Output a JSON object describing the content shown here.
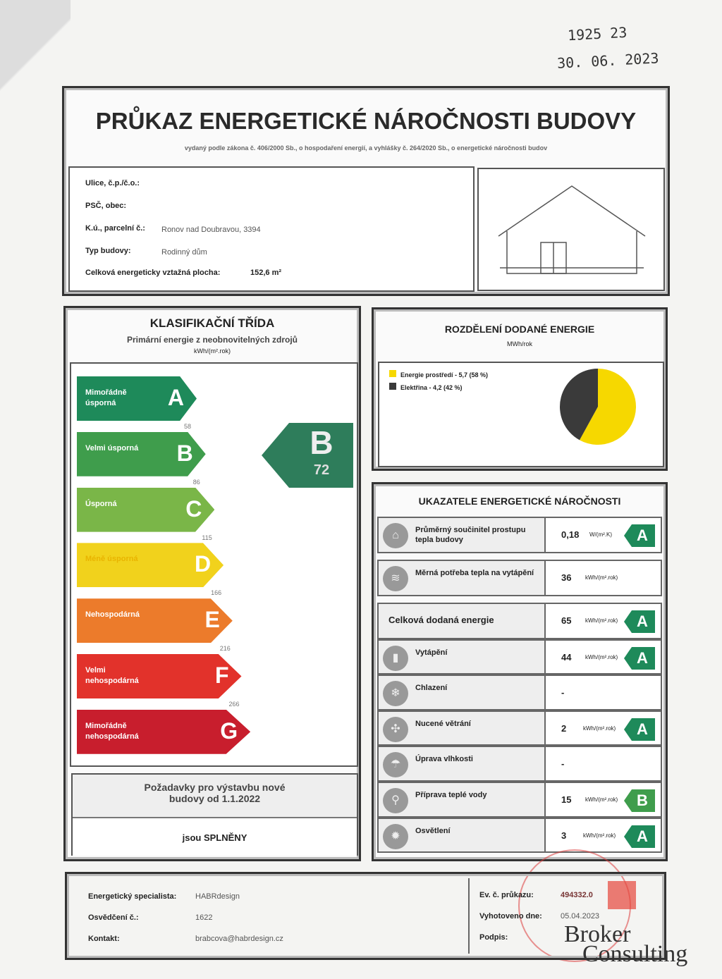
{
  "stamp": {
    "number": "1925 23",
    "date": "30. 06. 2023"
  },
  "header": {
    "title": "PRŮKAZ ENERGETICKÉ NÁROČNOSTI BUDOVY",
    "subtitle": "vydaný podle zákona č. 406/2000 Sb., o hospodaření energií, a vyhlášky č. 264/2020 Sb., o energetické náročnosti budov"
  },
  "building": {
    "street_label": "Ulice, č.p./č.o.:",
    "psc_label": "PSČ, obec:",
    "ku_label": "K.ú., parcelní č.:",
    "ku_value": "Ronov nad Doubravou, 3394",
    "type_label": "Typ budovy:",
    "type_value": "Rodinný dům",
    "area_label": "Celková energeticky vztažná plocha:",
    "area_value": "152,6 m²"
  },
  "classification": {
    "title": "KLASIFIKAČNÍ TŘÍDA",
    "subtitle": "Primární energie z neobnovitelných zdrojů",
    "unit": "kWh/(m².rok)",
    "classes": [
      {
        "letter": "A",
        "name": "Mimořádně úsporná",
        "color": "#1e8a5a"
      },
      {
        "letter": "B",
        "name": "Velmi úsporná",
        "color": "#3f9d4c"
      },
      {
        "letter": "C",
        "name": "Úsporná",
        "color": "#7ab648"
      },
      {
        "letter": "D",
        "name": "Méně úsporná",
        "color": "#f1d21c"
      },
      {
        "letter": "E",
        "name": "Nehospodárná",
        "color": "#ec7b2b"
      },
      {
        "letter": "F",
        "name": "Velmi nehospodárná",
        "color": "#e2322b"
      },
      {
        "letter": "G",
        "name": "Mimořádně nehospodárná",
        "color": "#c81e2d"
      }
    ],
    "thresholds": [
      "58",
      "86",
      "115",
      "166",
      "216",
      "266"
    ],
    "result": {
      "letter": "B",
      "value": "72",
      "color": "#2e7d5b"
    },
    "requirements": {
      "text": "Požadavky pro výstavbu nové budovy od 1.1.2022",
      "status": "jsou SPLNĚNY"
    }
  },
  "distribution": {
    "title": "ROZDĚLENÍ DODANÉ ENERGIE",
    "unit": "MWh/rok",
    "items": [
      {
        "label": "Energie prostředí - 5,7 (58 %)",
        "value": 5.7,
        "percent": 58,
        "color": "#f6d800"
      },
      {
        "label": "Elektřina - 4,2 (42 %)",
        "value": 4.2,
        "percent": 42,
        "color": "#3a3a3a"
      }
    ]
  },
  "indicators": {
    "title": "UKAZATELE ENERGETICKÉ NÁROČNOSTI",
    "rows": [
      {
        "icon": "house-icon",
        "label": "Průměrný součinitel prostupu tepla budovy",
        "value": "0,18",
        "unit": "W/(m².K)",
        "class": "A"
      },
      {
        "icon": "radiator-icon",
        "label": "Měrná potřeba tepla na vytápění",
        "value": "36",
        "unit": "kWh/(m².rok)",
        "class": ""
      },
      {
        "icon": "",
        "label": "Celková dodaná energie",
        "value": "65",
        "unit": "kWh/(m².rok)",
        "class": "A"
      },
      {
        "icon": "heating-icon",
        "label": "Vytápění",
        "value": "44",
        "unit": "kWh/(m².rok)",
        "class": "A"
      },
      {
        "icon": "cooling-icon",
        "label": "Chlazení",
        "value": "-",
        "unit": "",
        "class": ""
      },
      {
        "icon": "fan-icon",
        "label": "Nucené větrání",
        "value": "2",
        "unit": "kWh/(m².rok)",
        "class": "A"
      },
      {
        "icon": "humidity-icon",
        "label": "Úprava vlhkosti",
        "value": "-",
        "unit": "",
        "class": ""
      },
      {
        "icon": "tap-icon",
        "label": "Příprava teplé vody",
        "value": "15",
        "unit": "kWh/(m².rok)",
        "class": "B"
      },
      {
        "icon": "bulb-icon",
        "label": "Osvětlení",
        "value": "3",
        "unit": "kWh/(m².rok)",
        "class": "A"
      }
    ]
  },
  "footer": {
    "specialist_label": "Energetický specialista:",
    "specialist": "HABRdesign",
    "cert_label": "Osvědčení č.:",
    "cert": "1622",
    "contact_label": "Kontakt:",
    "contact": "brabcova@habrdesign.cz",
    "ev_label": "Ev. č. průkazu:",
    "ev": "494332.0",
    "date_label": "Vyhotoveno dne:",
    "date": "05.04.2023",
    "sign_label": "Podpis:"
  },
  "watermark": {
    "line1": "Broker",
    "line2": "Consulting"
  }
}
